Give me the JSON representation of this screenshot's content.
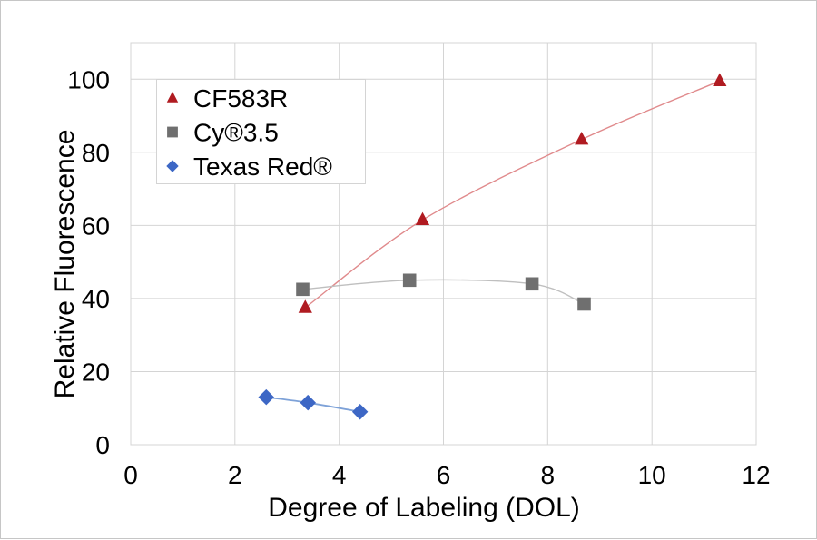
{
  "frame": {
    "background": "#ffffff",
    "border_color": "#c6c6c6"
  },
  "chart_data": {
    "type": "line",
    "title": "",
    "xlabel": "Degree of Labeling (DOL)",
    "ylabel": "Relative Fluorescence",
    "xlim": [
      0,
      12
    ],
    "ylim": [
      0,
      110
    ],
    "xticks": [
      0,
      2,
      4,
      6,
      8,
      10,
      12
    ],
    "yticks": [
      0,
      20,
      40,
      60,
      80,
      100
    ],
    "grid": true,
    "grid_color": "#d4d4d4",
    "text_color": "#000000",
    "legend_position": "top-left",
    "series": [
      {
        "name": "CF583R",
        "marker": "triangle",
        "marker_color": "#b01b21",
        "line_color": "#e08a8c",
        "line_width": 1.4,
        "points": [
          [
            3.35,
            37.5
          ],
          [
            5.6,
            61.5
          ],
          [
            8.65,
            83.5
          ],
          [
            11.3,
            99.5
          ]
        ]
      },
      {
        "name": "Cy®3.5",
        "marker": "square",
        "marker_color": "#6f6f6f",
        "line_color": "#bfbfbf",
        "line_width": 1.4,
        "points": [
          [
            3.3,
            42.5
          ],
          [
            5.35,
            45
          ],
          [
            7.7,
            44
          ],
          [
            8.7,
            38.5
          ]
        ]
      },
      {
        "name": "Texas Red®",
        "marker": "diamond",
        "marker_color": "#3d67c5",
        "line_color": "#7ea2d8",
        "line_width": 1.8,
        "points": [
          [
            2.6,
            13
          ],
          [
            3.4,
            11.5
          ],
          [
            4.4,
            9
          ]
        ]
      }
    ],
    "legend": {
      "entries": [
        "CF583R",
        "Cy®3.5",
        "Texas Red®"
      ]
    }
  }
}
